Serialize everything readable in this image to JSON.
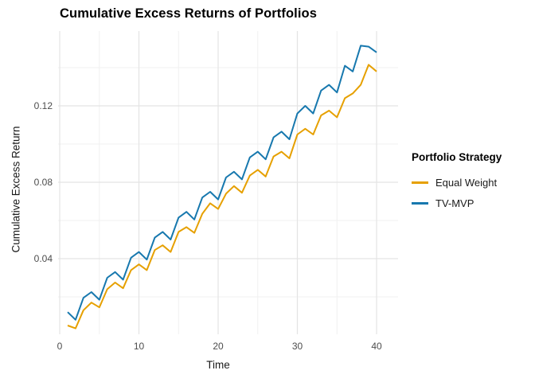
{
  "chart_data": {
    "type": "line",
    "title": "Cumulative Excess Returns of Portfolios",
    "xlabel": "Time",
    "ylabel": "Cumulative Excess Return",
    "legend_title": "Portfolio Strategy",
    "legend_position": "right",
    "grid": true,
    "xlim": [
      0,
      42
    ],
    "ylim": [
      0,
      0.158
    ],
    "x_ticks": [
      0,
      10,
      20,
      30,
      40
    ],
    "x_tick_labels": [
      "0",
      "10",
      "20",
      "30",
      "40"
    ],
    "x_minor_ticks": [
      5,
      15,
      25,
      35
    ],
    "y_ticks": [
      0.04,
      0.08,
      0.12
    ],
    "y_tick_labels": [
      "0.04",
      "0.08",
      "0.12"
    ],
    "y_minor_ticks": [
      0.02,
      0.06,
      0.1,
      0.14
    ],
    "x": [
      1,
      2,
      3,
      4,
      5,
      6,
      7,
      8,
      9,
      10,
      11,
      12,
      13,
      14,
      15,
      16,
      17,
      18,
      19,
      20,
      21,
      22,
      23,
      24,
      25,
      26,
      27,
      28,
      29,
      30,
      31,
      32,
      33,
      34,
      35,
      36,
      37,
      38,
      39,
      40
    ],
    "series": [
      {
        "name": "Equal Weight",
        "color": "#E6A000",
        "values": [
          0.005,
          0.0035,
          0.013,
          0.017,
          0.0145,
          0.024,
          0.0275,
          0.0245,
          0.034,
          0.037,
          0.034,
          0.0445,
          0.047,
          0.0435,
          0.054,
          0.0565,
          0.0535,
          0.0635,
          0.069,
          0.066,
          0.074,
          0.078,
          0.0745,
          0.0835,
          0.0865,
          0.083,
          0.0935,
          0.096,
          0.0925,
          0.105,
          0.108,
          0.105,
          0.115,
          0.1175,
          0.114,
          0.124,
          0.1265,
          0.131,
          0.1415,
          0.138
        ]
      },
      {
        "name": "TV-MVP",
        "color": "#1778AE",
        "values": [
          0.012,
          0.008,
          0.0195,
          0.0225,
          0.0185,
          0.03,
          0.033,
          0.029,
          0.0405,
          0.0435,
          0.0395,
          0.051,
          0.054,
          0.05,
          0.0615,
          0.0645,
          0.0605,
          0.072,
          0.075,
          0.071,
          0.0825,
          0.0855,
          0.0815,
          0.093,
          0.096,
          0.092,
          0.1035,
          0.1065,
          0.1025,
          0.116,
          0.12,
          0.116,
          0.128,
          0.131,
          0.127,
          0.141,
          0.138,
          0.1515,
          0.151,
          0.148
        ]
      }
    ],
    "grid_colors": {
      "major": "#e4e4e4",
      "minor": "#f0f0f0"
    }
  }
}
